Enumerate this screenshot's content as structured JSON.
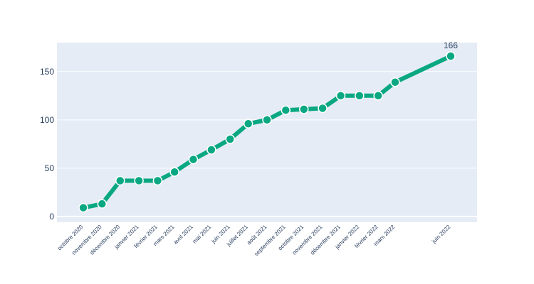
{
  "chart_data": {
    "type": "line",
    "title": "",
    "xlabel": "",
    "ylabel": "",
    "x": [
      "octobre 2020",
      "novembre 2020",
      "décembre 2020",
      "janvier 2021",
      "février 2021",
      "mars 2021",
      "avril 2021",
      "mai 2021",
      "juin 2021",
      "juillet 2021",
      "août 2021",
      "septembre 2021",
      "octobre 2021",
      "novembre 2021",
      "décembre 2021",
      "janvier 2022",
      "février 2022",
      "mars 2022",
      "juin 2022"
    ],
    "x_dates": [
      "2020-10-01",
      "2020-11-01",
      "2020-12-01",
      "2021-01-01",
      "2021-02-01",
      "2021-03-01",
      "2021-04-01",
      "2021-05-01",
      "2021-06-01",
      "2021-07-01",
      "2021-08-01",
      "2021-09-01",
      "2021-10-01",
      "2021-11-01",
      "2021-12-01",
      "2022-01-01",
      "2022-02-01",
      "2022-03-01",
      "2022-06-01"
    ],
    "values": [
      9,
      13,
      37,
      37,
      37,
      46,
      59,
      69,
      80,
      96,
      100,
      110,
      111,
      112,
      125,
      125,
      125,
      139,
      166
    ],
    "data_labels": [
      {
        "x": "juin 2022",
        "text": "166"
      }
    ],
    "ylim": [
      -6,
      180
    ],
    "yticks": [
      0,
      50,
      100,
      150
    ],
    "grid": true,
    "colors": {
      "line": "#0aa882",
      "marker_fill": "#0aa882",
      "marker_edge": "#ffffff",
      "plot_bg": "#e5ecf6",
      "grid": "#ffffff",
      "text": "#2a3f5f"
    }
  }
}
